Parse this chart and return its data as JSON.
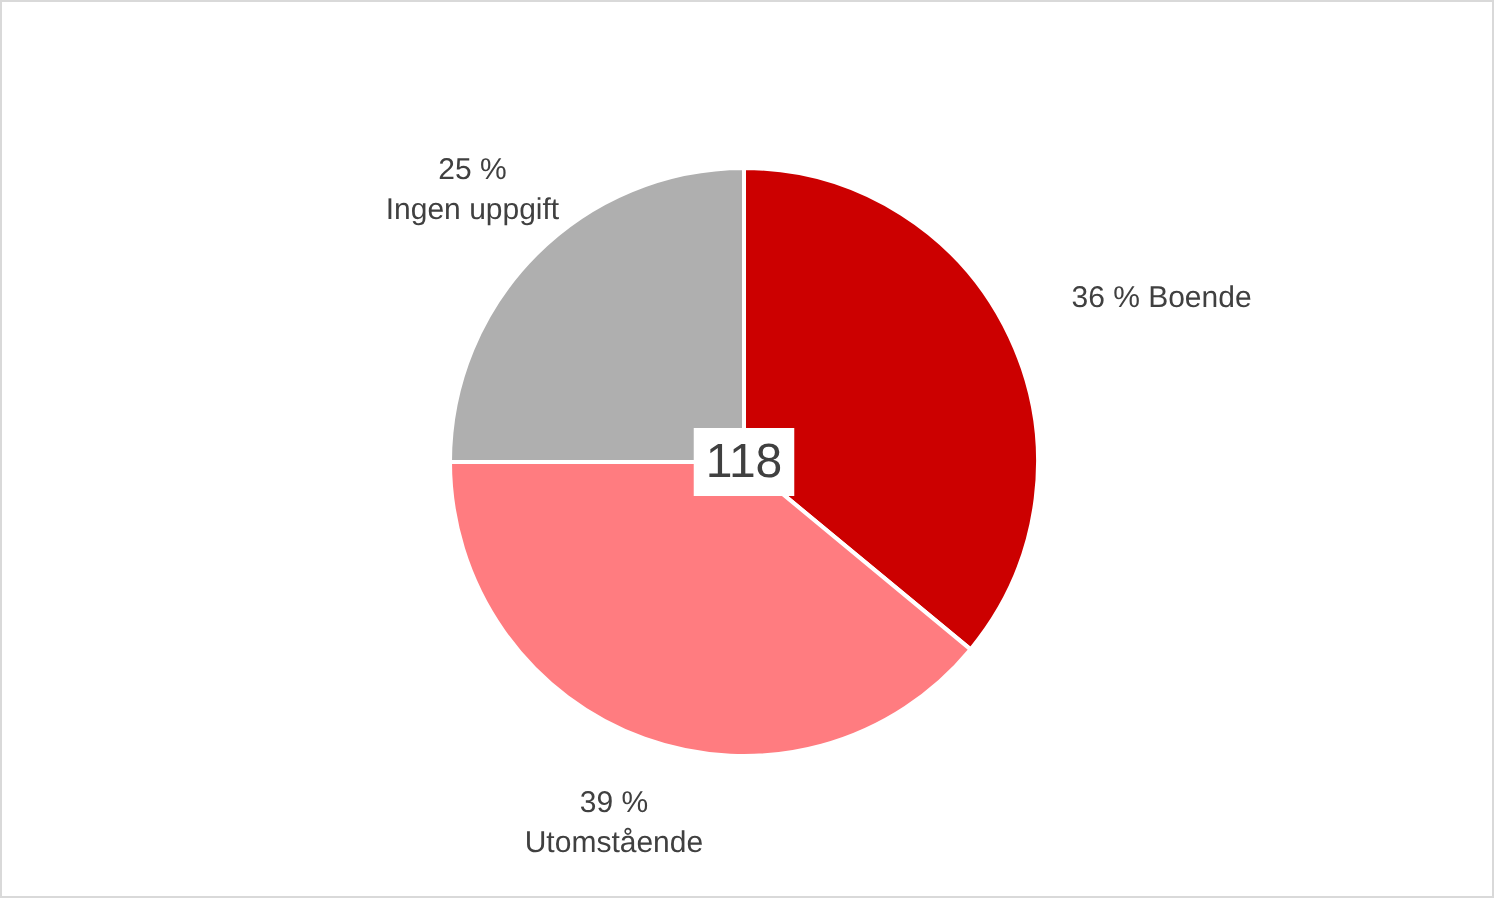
{
  "chart_data": {
    "type": "pie",
    "categories": [
      "Boende",
      "Utomstående",
      "Ingen uppgift"
    ],
    "values": [
      36,
      39,
      25
    ],
    "colors": [
      "#cc0000",
      "#ff7c80",
      "#afafaf"
    ],
    "value_labels": [
      "36 %",
      "39 %",
      "25 %"
    ],
    "annotations": [
      "118"
    ],
    "legend": false
  }
}
